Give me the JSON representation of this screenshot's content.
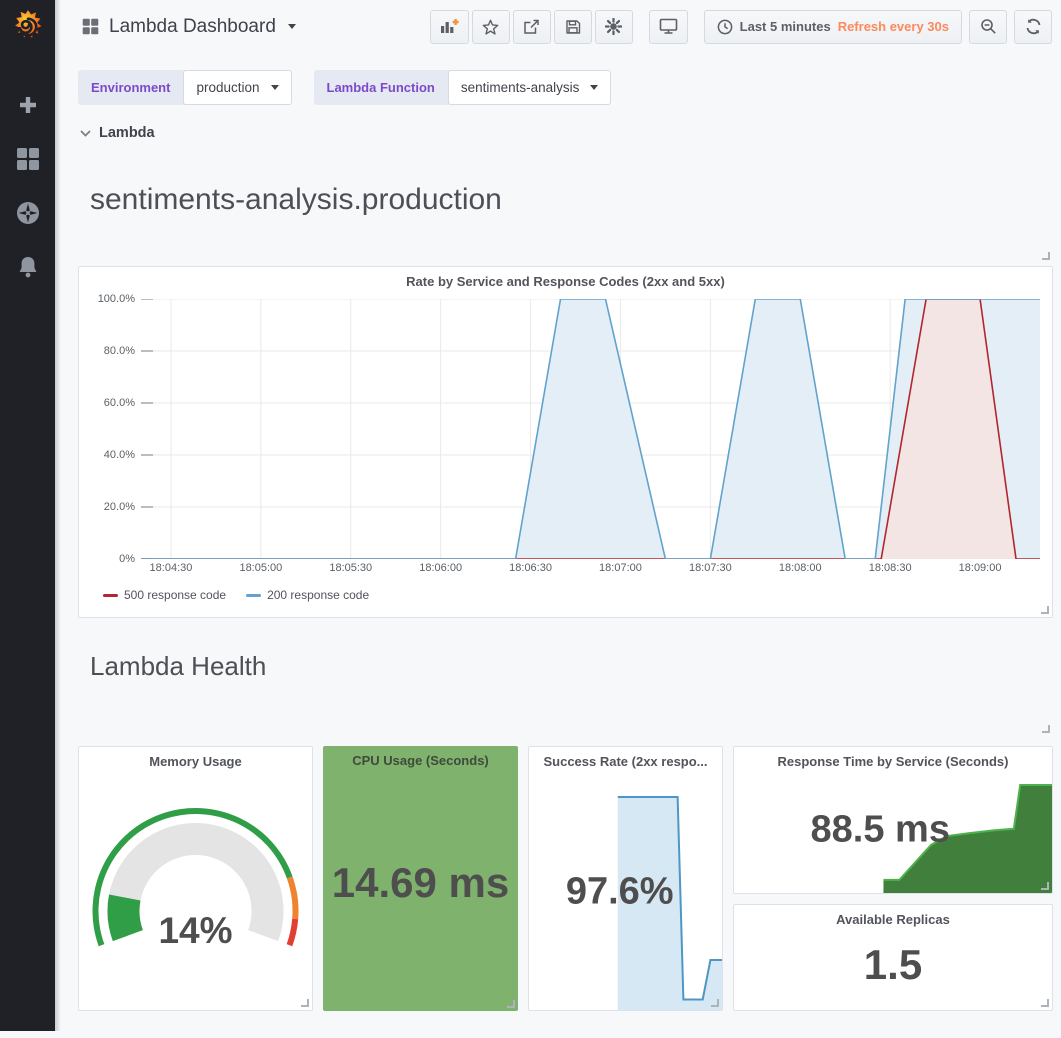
{
  "sidebar": {
    "icon_names": [
      "grafana-logo",
      "add",
      "dashboards",
      "explore",
      "alerting"
    ]
  },
  "header": {
    "title": "Lambda Dashboard",
    "toolbar_icon_names": [
      "add-panel",
      "star",
      "share",
      "save",
      "settings",
      "cycle-view",
      "clock",
      "zoom-out",
      "refresh"
    ],
    "time_picker": {
      "range": "Last 5 minutes",
      "refresh": "Refresh every 30s"
    }
  },
  "variables": {
    "environment": {
      "label": "Environment",
      "value": "production"
    },
    "lambda_function": {
      "label": "Lambda Function",
      "value": "sentiments-analysis"
    }
  },
  "row": {
    "title": "Lambda"
  },
  "text_panels": {
    "function_title": "sentiments-analysis.production",
    "section_title": "Lambda Health"
  },
  "colors": {
    "accent_orange": "#fb8a5c",
    "variable_purple": "#7d49c9",
    "cpu_bg_green": "#7eb26d"
  },
  "chart_data": [
    {
      "type": "area",
      "title": "Rate by Service and Response Codes (2xx and 5xx)",
      "xlabel": "time",
      "ylabel": "percent",
      "ylim": [
        0,
        100
      ],
      "x_range_seconds": [
        0,
        300
      ],
      "x_start_time": "18:04:20",
      "grid": true,
      "legend_position": "bottom-left",
      "y_ticks": [
        {
          "v": 0,
          "label": "0%"
        },
        {
          "v": 20,
          "label": "20.0%"
        },
        {
          "v": 40,
          "label": "40.0%"
        },
        {
          "v": 60,
          "label": "60.0%"
        },
        {
          "v": 80,
          "label": "80.0%"
        },
        {
          "v": 100,
          "label": "100.0%"
        }
      ],
      "x_ticks": [
        {
          "s": 10,
          "label": "18:04:30"
        },
        {
          "s": 40,
          "label": "18:05:00"
        },
        {
          "s": 70,
          "label": "18:05:30"
        },
        {
          "s": 100,
          "label": "18:06:00"
        },
        {
          "s": 130,
          "label": "18:06:30"
        },
        {
          "s": 160,
          "label": "18:07:00"
        },
        {
          "s": 190,
          "label": "18:07:30"
        },
        {
          "s": 220,
          "label": "18:08:00"
        },
        {
          "s": 250,
          "label": "18:08:30"
        },
        {
          "s": 280,
          "label": "18:09:00"
        }
      ],
      "series": [
        {
          "name": "500 response code",
          "stroke": "#b2262d",
          "fill": "#f3e5e4",
          "points": [
            [
              0,
              0
            ],
            [
              247,
              0
            ],
            [
              262,
              100
            ],
            [
              280,
              100
            ],
            [
              292,
              0
            ],
            [
              300,
              0
            ]
          ]
        },
        {
          "name": "200 response code",
          "stroke": "#61a3cc",
          "fill": "#e4eef7",
          "points": [
            [
              0,
              0
            ],
            [
              125,
              0
            ],
            [
              140,
              100
            ],
            [
              155,
              100
            ],
            [
              175,
              0
            ],
            [
              190,
              0
            ],
            [
              205,
              100
            ],
            [
              220,
              100
            ],
            [
              235,
              0
            ],
            [
              245,
              0
            ],
            [
              255,
              100
            ],
            [
              300,
              100
            ]
          ]
        }
      ]
    },
    {
      "type": "area-sparkline",
      "panel": "success-rate",
      "stroke": "#4e97c4",
      "fill": "#d7e8f5",
      "points_pct": [
        [
          46,
          19
        ],
        [
          77,
          19
        ],
        [
          80,
          96
        ],
        [
          90,
          96
        ],
        [
          94,
          81
        ],
        [
          100,
          81
        ]
      ]
    },
    {
      "type": "area-sparkline",
      "panel": "response-time",
      "stroke": "#4cb34c",
      "fill": "#41803c",
      "points_pct": [
        [
          47,
          91
        ],
        [
          52,
          91
        ],
        [
          57,
          79
        ],
        [
          62,
          67
        ],
        [
          67,
          61
        ],
        [
          74,
          59
        ],
        [
          82,
          57
        ],
        [
          88,
          56
        ],
        [
          90,
          26
        ],
        [
          100,
          26
        ]
      ]
    }
  ],
  "health": {
    "memory": {
      "title": "Memory Usage",
      "value": "14%",
      "percent": 14,
      "gauge_color": "#2f9e47",
      "track_color": "#e4e4e4",
      "thresholds": [
        {
          "color": "#2f9e47",
          "frac": 0.82
        },
        {
          "color": "#ef8330",
          "frac": 0.11
        },
        {
          "color": "#e23e31",
          "frac": 0.07
        }
      ]
    },
    "cpu": {
      "title": "CPU Usage (Seconds)",
      "value": "14.69 ms",
      "bg": "#7eb26d"
    },
    "success": {
      "title": "Success Rate (2xx respo...",
      "value": "97.6%"
    },
    "response": {
      "title": "Response Time by Service (Seconds)",
      "value": "88.5 ms"
    },
    "replicas": {
      "title": "Available Replicas",
      "value": "1.5"
    }
  }
}
